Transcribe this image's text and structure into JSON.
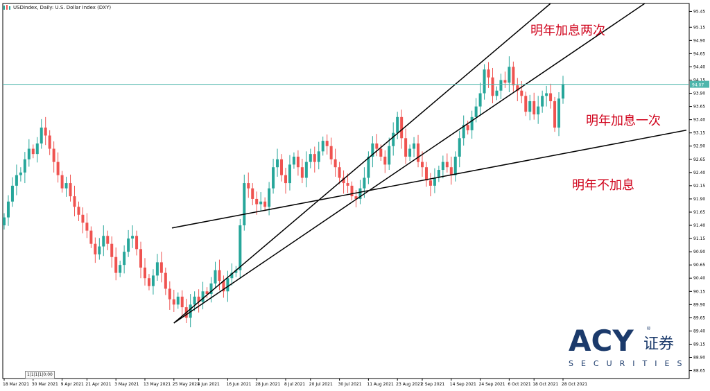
{
  "window": {
    "title": "USDIndex, Daily:  U.S. Dollar Index (DXY)",
    "period_box": "1|1|1|1|0:00"
  },
  "annotations": {
    "twice": "明年加息两次",
    "once": "明年加息一次",
    "none": "明年不加息"
  },
  "logo": {
    "acy": "ACY",
    "cn": "证券",
    "sub": "SECURITIES",
    "reg": "®"
  },
  "colors": {
    "up": "#26a69a",
    "down": "#ef5350",
    "trend": "#000000",
    "price_line": "#4db6ac",
    "label": "#d0021b",
    "brand": "#1b3a6b"
  },
  "chart_data": {
    "type": "candlestick",
    "title": "USDIndex, Daily:  U.S. Dollar Index (DXY)",
    "ylim": [
      88.5,
      95.6
    ],
    "current_price": "94.07",
    "current_price_value": 94.07,
    "y_ticks": [
      "95.45",
      "95.15",
      "94.90",
      "94.65",
      "94.40",
      "94.15",
      "93.90",
      "93.65",
      "93.40",
      "93.15",
      "92.90",
      "92.65",
      "92.40",
      "92.15",
      "91.90",
      "91.65",
      "91.40",
      "91.15",
      "90.90",
      "90.65",
      "90.40",
      "90.15",
      "89.90",
      "89.65",
      "89.40",
      "89.15",
      "88.90",
      "88.65"
    ],
    "x_ticks": [
      "18 Mar 2021",
      "30 Mar 2021",
      "9 Apr 2021",
      "21 Apr 2021",
      "3 May 2021",
      "13 May 2021",
      "25 May 2021",
      "4 Jun 2021",
      "16 Jun 2021",
      "28 Jun 2021",
      "8 Jul 2021",
      "20 Jul 2021",
      "30 Jul 2021",
      "11 Aug 2021",
      "23 Aug 2021",
      "2 Sep 2021",
      "14 Sep 2021",
      "24 Sep 2021",
      "6 Oct 2021",
      "18 Oct 2021",
      "28 Oct 2021"
    ],
    "closes": [
      91.55,
      91.85,
      92.15,
      92.35,
      92.4,
      92.65,
      92.85,
      92.75,
      92.95,
      93.25,
      93.1,
      92.85,
      92.6,
      92.35,
      92.1,
      92.2,
      91.95,
      91.75,
      91.6,
      91.45,
      91.3,
      91.05,
      90.85,
      91.0,
      91.2,
      91.05,
      90.8,
      90.5,
      90.65,
      90.9,
      91.15,
      91.2,
      90.95,
      90.6,
      90.4,
      90.25,
      90.45,
      90.7,
      90.5,
      90.2,
      90.0,
      89.9,
      90.05,
      89.85,
      89.65,
      89.9,
      90.05,
      89.95,
      90.15,
      90.1,
      90.3,
      90.55,
      90.35,
      90.15,
      90.4,
      90.5,
      90.55,
      91.4,
      92.2,
      92.1,
      91.9,
      91.8,
      91.85,
      91.75,
      92.1,
      92.5,
      92.65,
      92.35,
      92.2,
      92.55,
      92.7,
      92.5,
      92.3,
      92.6,
      92.75,
      92.6,
      92.8,
      93.0,
      92.9,
      92.65,
      92.5,
      92.3,
      92.2,
      92.15,
      91.95,
      91.9,
      92.1,
      92.3,
      92.7,
      92.95,
      92.85,
      92.7,
      92.55,
      92.9,
      93.15,
      93.45,
      93.05,
      92.7,
      92.85,
      92.95,
      92.6,
      92.5,
      92.25,
      92.15,
      92.3,
      92.45,
      92.6,
      92.5,
      92.35,
      92.7,
      93.05,
      93.3,
      93.2,
      93.45,
      93.65,
      93.9,
      94.35,
      94.2,
      93.85,
      93.95,
      94.15,
      94.1,
      94.4,
      94.05,
      93.95,
      93.85,
      93.55,
      93.75,
      93.5,
      93.65,
      93.85,
      93.9,
      93.75,
      93.25,
      93.8,
      94.07
    ],
    "trendlines": [
      {
        "name": "two-hikes",
        "from": [
          "25 May 2021",
          89.55
        ],
        "to": [
          "28 Oct 2021",
          95.8
        ]
      },
      {
        "name": "one-hike",
        "from": [
          "25 May 2021",
          89.55
        ],
        "to": [
          "28 Oct 2021",
          94.55
        ]
      },
      {
        "name": "no-hike",
        "from": [
          "25 May 2021",
          91.35
        ],
        "to": [
          "28 Oct 2021",
          92.75
        ]
      }
    ],
    "grid": false
  }
}
